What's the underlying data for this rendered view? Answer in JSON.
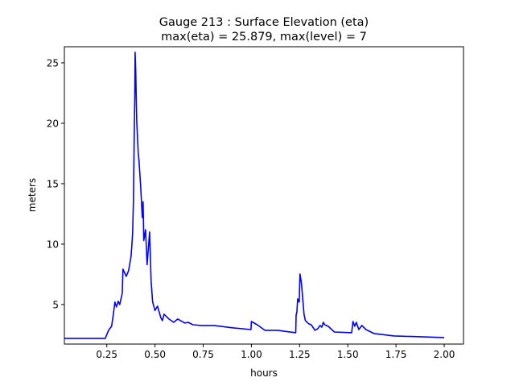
{
  "chart_data": {
    "type": "line",
    "title_line1": "Gauge 213 : Surface Elevation (eta)",
    "title_line2": "max(eta) =  25.879,    max(level) = 7",
    "xlabel": "hours",
    "ylabel": "meters",
    "xlim": [
      0.03,
      2.1
    ],
    "ylim": [
      1.73,
      26.33
    ],
    "xticks": [
      0.25,
      0.5,
      0.75,
      1.0,
      1.25,
      1.5,
      1.75,
      2.0
    ],
    "xtick_labels": [
      "0.25",
      "0.50",
      "0.75",
      "1.00",
      "1.25",
      "1.50",
      "1.75",
      "2.00"
    ],
    "yticks": [
      5,
      10,
      15,
      20,
      25
    ],
    "ytick_labels": [
      "5",
      "10",
      "15",
      "20",
      "25"
    ],
    "grid": false,
    "line_color": "#0000ff",
    "series": [
      {
        "x": [
          0.03,
          0.242,
          0.259,
          0.275,
          0.284,
          0.292,
          0.3,
          0.309,
          0.317,
          0.33,
          0.334,
          0.351,
          0.363,
          0.376,
          0.384,
          0.388,
          0.392,
          0.395,
          0.397,
          0.4,
          0.405,
          0.413,
          0.417,
          0.426,
          0.434,
          0.438,
          0.442,
          0.451,
          0.459,
          0.467,
          0.472,
          0.48,
          0.488,
          0.5,
          0.513,
          0.53,
          0.538,
          0.547,
          0.572,
          0.597,
          0.618,
          0.655,
          0.672,
          0.697,
          0.739,
          0.806,
          0.906,
          0.998,
          1.0,
          1.03,
          1.07,
          1.135,
          1.23,
          1.232,
          1.236,
          1.24,
          1.248,
          1.252,
          1.26,
          1.273,
          1.28,
          1.298,
          1.31,
          1.33,
          1.344,
          1.356,
          1.365,
          1.373,
          1.38,
          1.398,
          1.43,
          1.52,
          1.527,
          1.536,
          1.544,
          1.557,
          1.573,
          1.594,
          1.636,
          1.74,
          2.0
        ],
        "y": [
          2.2,
          2.2,
          2.87,
          3.2,
          4.2,
          5.2,
          4.8,
          5.27,
          5.0,
          5.93,
          7.93,
          7.33,
          7.8,
          9.0,
          10.87,
          13.5,
          18.5,
          22.2,
          25.879,
          24.2,
          20.2,
          17.5,
          16.9,
          14.7,
          12.2,
          13.5,
          10.3,
          11.2,
          8.3,
          9.9,
          11.0,
          6.9,
          5.2,
          4.5,
          4.87,
          3.93,
          3.67,
          4.2,
          3.8,
          3.53,
          3.8,
          3.47,
          3.53,
          3.33,
          3.27,
          3.27,
          3.07,
          2.93,
          3.6,
          3.33,
          2.87,
          2.87,
          2.67,
          4.13,
          4.4,
          5.47,
          5.2,
          7.53,
          6.73,
          4.2,
          3.67,
          3.4,
          3.33,
          2.87,
          3.0,
          3.27,
          3.13,
          3.53,
          3.33,
          3.2,
          2.73,
          2.67,
          3.6,
          3.2,
          3.53,
          2.93,
          3.27,
          2.93,
          2.6,
          2.4,
          2.27
        ]
      }
    ]
  }
}
